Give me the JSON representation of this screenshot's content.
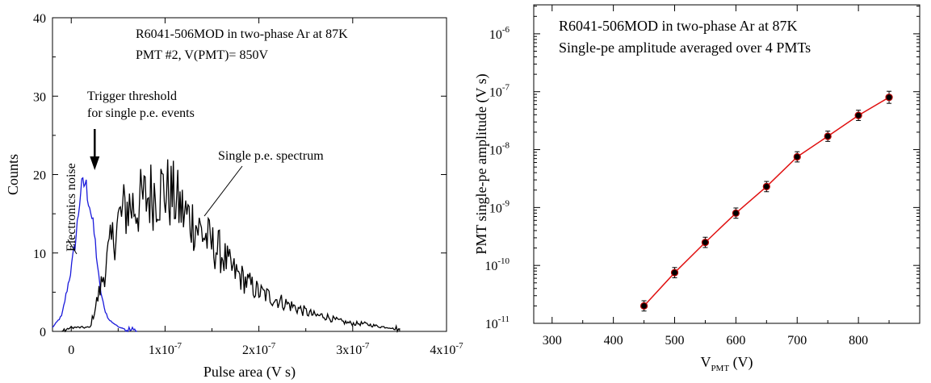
{
  "colors": {
    "noise": "#1a1adb",
    "spectrum": "#000000",
    "fit": "#e01010",
    "points": "#000000",
    "points_edge": "#b00000"
  },
  "chart_data": [
    {
      "type": "line",
      "title": "R6041-506MOD in two-phase Ar at 87K",
      "subtitle": "PMT #2, V(PMT)= 850V",
      "xlabel": "Pulse area (V s)",
      "ylabel": "Counts",
      "xlim": [
        -2e-08,
        4e-07
      ],
      "ylim": [
        0,
        40
      ],
      "x_ticks": [
        {
          "value": 0,
          "label": "0",
          "exp": ""
        },
        {
          "value": 1e-07,
          "label": "1x10",
          "exp": "-7"
        },
        {
          "value": 2e-07,
          "label": "2x10",
          "exp": "-7"
        },
        {
          "value": 3e-07,
          "label": "3x10",
          "exp": "-7"
        },
        {
          "value": 4e-07,
          "label": "4x10",
          "exp": "-7"
        }
      ],
      "y_ticks": [
        0,
        10,
        20,
        30,
        40
      ],
      "annotations": {
        "trigger_line1": "Trigger threshold",
        "trigger_line2": "for single p.e. events",
        "spectrum_label": "Single p.e. spectrum",
        "noise_label": "Electronics noise"
      },
      "trigger_threshold_x": 2.5e-08,
      "series": [
        {
          "name": "Electronics noise",
          "color": "#1a1adb",
          "x": [
            -0.02,
            -0.01,
            0.0,
            0.005,
            0.01,
            0.015,
            0.02,
            0.025,
            0.03,
            0.035,
            0.04,
            0.05,
            0.06,
            0.07
          ],
          "y": [
            0.5,
            2,
            8,
            12,
            18,
            19,
            16,
            12,
            6,
            3,
            1.5,
            0.6,
            0.2,
            0
          ]
        },
        {
          "name": "Single p.e. spectrum",
          "color": "#000000",
          "x": [
            -0.01,
            0.0,
            0.01,
            0.02,
            0.03,
            0.04,
            0.05,
            0.06,
            0.07,
            0.08,
            0.09,
            0.1,
            0.11,
            0.12,
            0.13,
            0.14,
            0.15,
            0.16,
            0.17,
            0.18,
            0.19,
            0.2,
            0.21,
            0.22,
            0.23,
            0.24,
            0.25,
            0.26,
            0.27,
            0.28,
            0.29,
            0.3,
            0.31,
            0.32,
            0.33,
            0.34,
            0.35
          ],
          "y": [
            0,
            0.5,
            0.5,
            0.5,
            5,
            10,
            14,
            16,
            16,
            17,
            18,
            18,
            17,
            15,
            14,
            12.5,
            11,
            10,
            8,
            7,
            6,
            5,
            4.5,
            4,
            3.5,
            3,
            2.5,
            2,
            2,
            1.5,
            1.2,
            1,
            1,
            0.8,
            0.6,
            0.5,
            0
          ]
        }
      ]
    },
    {
      "type": "scatter",
      "title": "R6041-506MOD in two-phase Ar at 87K",
      "subtitle": "Single-pe amplitude averaged over 4 PMTs",
      "xlabel": "V",
      "xlabel_sub": "PMT",
      "xlabel_unit": " (V)",
      "ylabel": "PMT single-pe amplitude (V s)",
      "xlim": [
        270,
        900
      ],
      "ylim_log10": [
        -11,
        -5.5
      ],
      "y_scale": "log",
      "x_ticks": [
        300,
        400,
        500,
        600,
        700,
        800
      ],
      "y_ticks": [
        {
          "exp": -11,
          "label": "10",
          "sup": "-11"
        },
        {
          "exp": -10,
          "label": "10",
          "sup": "-10"
        },
        {
          "exp": -9,
          "label": "10",
          "sup": "-9"
        },
        {
          "exp": -8,
          "label": "10",
          "sup": "-8"
        },
        {
          "exp": -7,
          "label": "10",
          "sup": "-7"
        },
        {
          "exp": -6,
          "label": "10",
          "sup": "-6"
        }
      ],
      "series": [
        {
          "name": "",
          "x": [
            450,
            500,
            550,
            600,
            650,
            700,
            750,
            800,
            850
          ],
          "y": [
            2e-11,
            7.5e-11,
            2.5e-10,
            8e-10,
            2.3e-09,
            7.5e-09,
            1.7e-08,
            3.9e-08,
            8e-08
          ],
          "err_log_frac": [
            0.17,
            0.17,
            0.17,
            0.17,
            0.17,
            0.17,
            0.17,
            0.17,
            0.2
          ]
        }
      ]
    }
  ]
}
